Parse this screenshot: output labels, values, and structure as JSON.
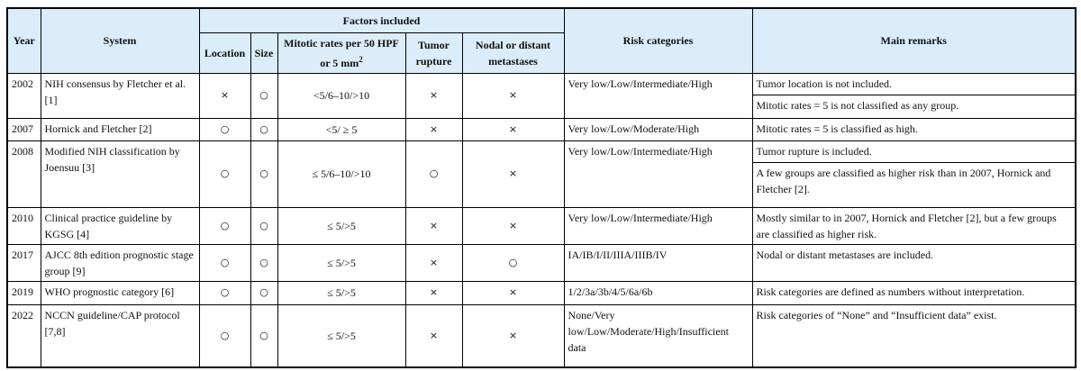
{
  "headers": {
    "year": "Year",
    "system": "System",
    "factors": "Factors included",
    "location": "Location",
    "size": "Size",
    "mitotic": "Mitotic rates per 50 HPF or 5 mm",
    "mitotic_sup": "2",
    "rupture": "Tumor rupture",
    "nodal": "Nodal or distant metastases",
    "risk": "Risk categories",
    "remarks": "Main remarks"
  },
  "rows": [
    {
      "year": "2002",
      "system": "NIH consensus by Fletcher et al. [1]",
      "location": "×",
      "size": "○",
      "mitotic": "<5/6–10/>10",
      "rupture": "×",
      "nodal": "×",
      "risk": "Very low/Low/Intermediate/High",
      "remarks": [
        "Tumor location is not included.",
        "Mitotic rates = 5 is not classified as any group."
      ]
    },
    {
      "year": "2007",
      "system": "Hornick and Fletcher [2]",
      "location": "○",
      "size": "○",
      "mitotic": "<5/ ≥ 5",
      "rupture": "×",
      "nodal": "×",
      "risk": "Very low/Low/Moderate/High",
      "remarks": [
        "Mitotic rates = 5 is classified as high."
      ]
    },
    {
      "year": "2008",
      "system": "Modified NIH classification by Joensuu [3]",
      "location": "○",
      "size": "○",
      "mitotic": "≤ 5/6–10/>10",
      "rupture": "○",
      "nodal": "×",
      "risk": "Very low/Low/Intermediate/High",
      "remarks": [
        "Tumor rupture is included.",
        "A few groups are classified as higher risk than in 2007, Hornick and Fletcher [2]."
      ]
    },
    {
      "year": "2010",
      "system": "Clinical practice guideline by KGSG [4]",
      "location": "○",
      "size": "○",
      "mitotic": "≤ 5/>5",
      "rupture": "×",
      "nodal": "×",
      "risk": "Very low/Low/Intermediate/High",
      "remarks": [
        "Mostly similar to in 2007, Hornick and Fletcher [2], but a few groups are classified as higher risk."
      ]
    },
    {
      "year": "2017",
      "system": "AJCC 8th edition prognostic stage group [9]",
      "location": "○",
      "size": "○",
      "mitotic": "≤ 5/>5",
      "rupture": "×",
      "nodal": "○",
      "risk": "IA/IB/I/II/IIIA/IIIB/IV",
      "remarks": [
        "Nodal or distant metastases are included."
      ]
    },
    {
      "year": "2019",
      "system": "WHO prognostic category [6]",
      "location": "○",
      "size": "○",
      "mitotic": "≤ 5/>5",
      "rupture": "×",
      "nodal": "×",
      "risk": "1/2/3a/3b/4/5/6a/6b",
      "remarks": [
        "Risk categories are defined as numbers without interpretation."
      ]
    },
    {
      "year": "2022",
      "system": "NCCN guideline/CAP protocol [7,8]",
      "location": "○",
      "size": "○",
      "mitotic": "≤ 5/>5",
      "rupture": "×",
      "nodal": "×",
      "risk": "None/Very low/Low/Moderate/High/Insufficient data",
      "remarks": [
        "Risk categories of “None” and “Insufficient data” exist."
      ]
    }
  ]
}
